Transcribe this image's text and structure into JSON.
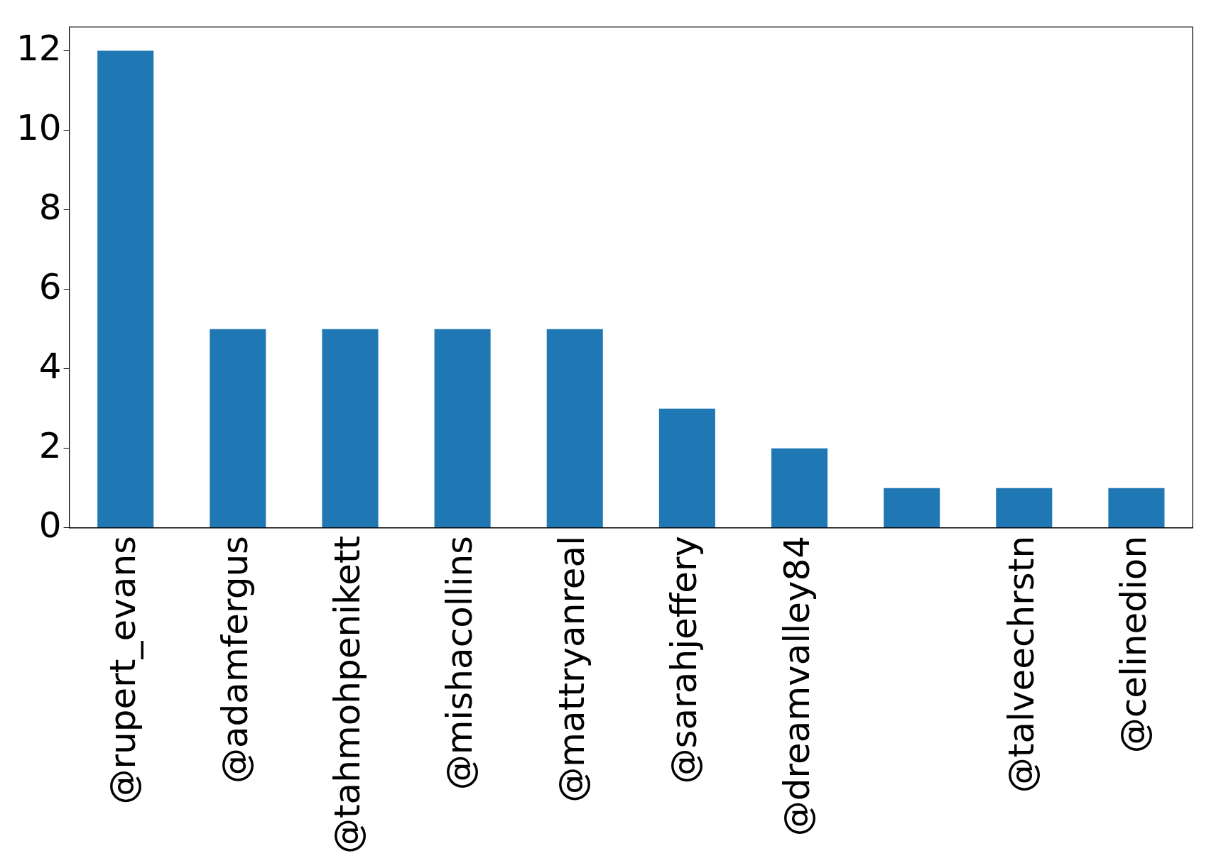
{
  "chart_data": {
    "type": "bar",
    "categories": [
      "@rupert_evans",
      "@adamfergus",
      "@tahmohpenikett",
      "@mishacollins",
      "@mattryanreal",
      "@sarahjeffery",
      "@dreamvalley84",
      null,
      "@talveechrstn",
      "@celinedion"
    ],
    "values": [
      12,
      5,
      5,
      5,
      5,
      3,
      2,
      1,
      1,
      1
    ],
    "color": "#1f77b4",
    "ylim": [
      0,
      12.6
    ],
    "yticks": [
      0,
      2,
      4,
      6,
      8,
      10,
      12
    ]
  }
}
